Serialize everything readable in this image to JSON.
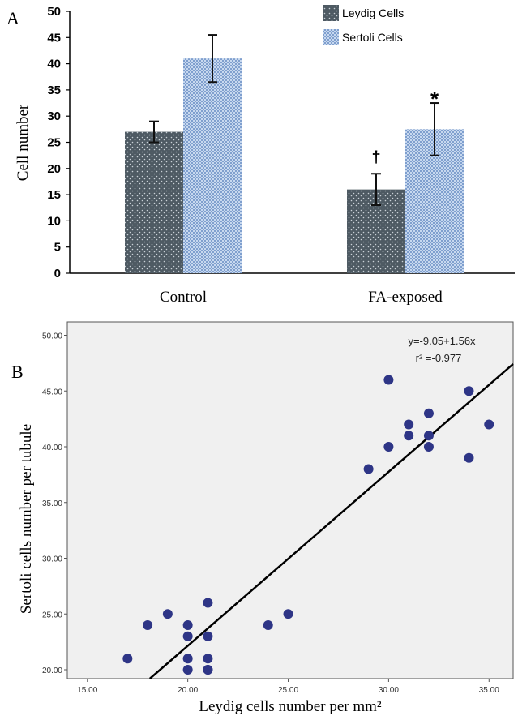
{
  "panel_a": {
    "label": "A"
  },
  "panel_b": {
    "label": "B"
  },
  "chart_data": [
    {
      "type": "bar",
      "categories": [
        "Control",
        "FA-exposed"
      ],
      "series": [
        {
          "name": "Leydig Cells",
          "values": [
            27,
            16
          ],
          "error": [
            2,
            3
          ],
          "color": "#4e5a63"
        },
        {
          "name": "Sertoli Cells",
          "values": [
            41,
            27.5
          ],
          "error": [
            4.5,
            5
          ],
          "color": "#a9c1e3"
        }
      ],
      "annotations": [
        {
          "text": "†",
          "series": "Leydig Cells",
          "category": "FA-exposed"
        },
        {
          "text": "*",
          "series": "Sertoli Cells",
          "category": "FA-exposed"
        }
      ],
      "title": "",
      "xlabel": "",
      "ylabel": "Cell number",
      "ylim": [
        0,
        50
      ],
      "yticks": [
        0,
        5,
        10,
        15,
        20,
        25,
        30,
        35,
        40,
        45,
        50
      ],
      "legend_position": "top-right",
      "grid": false
    },
    {
      "type": "scatter",
      "points": [
        [
          17,
          21
        ],
        [
          18,
          24
        ],
        [
          19,
          25
        ],
        [
          20,
          24
        ],
        [
          20,
          23
        ],
        [
          20,
          21
        ],
        [
          20,
          20
        ],
        [
          21,
          26
        ],
        [
          21,
          23
        ],
        [
          21,
          21
        ],
        [
          21,
          20
        ],
        [
          21,
          20
        ],
        [
          24,
          24
        ],
        [
          25,
          25
        ],
        [
          29,
          38
        ],
        [
          30,
          46
        ],
        [
          30,
          40
        ],
        [
          31,
          42
        ],
        [
          31,
          41
        ],
        [
          32,
          43
        ],
        [
          32,
          41
        ],
        [
          32,
          40
        ],
        [
          34,
          45
        ],
        [
          34,
          39
        ],
        [
          35,
          42
        ]
      ],
      "fit_line": {
        "intercept": -9.05,
        "slope": 1.56,
        "equation": "y=-9.05+1.56x",
        "r2_text": "r² =-0.977"
      },
      "xlabel": "Leydig cells number per mm²",
      "ylabel": "Sertoli cells number per tubule",
      "xlim": [
        14,
        36.2
      ],
      "ylim": [
        19.2,
        51.2
      ],
      "xticks": [
        "15.00",
        "20.00",
        "25.00",
        "30.00",
        "35.00"
      ],
      "yticks": [
        "20.00",
        "25.00",
        "30.00",
        "35.00",
        "40.00",
        "45.00",
        "50.00"
      ],
      "point_color": "#2e3586",
      "grid": false
    }
  ]
}
